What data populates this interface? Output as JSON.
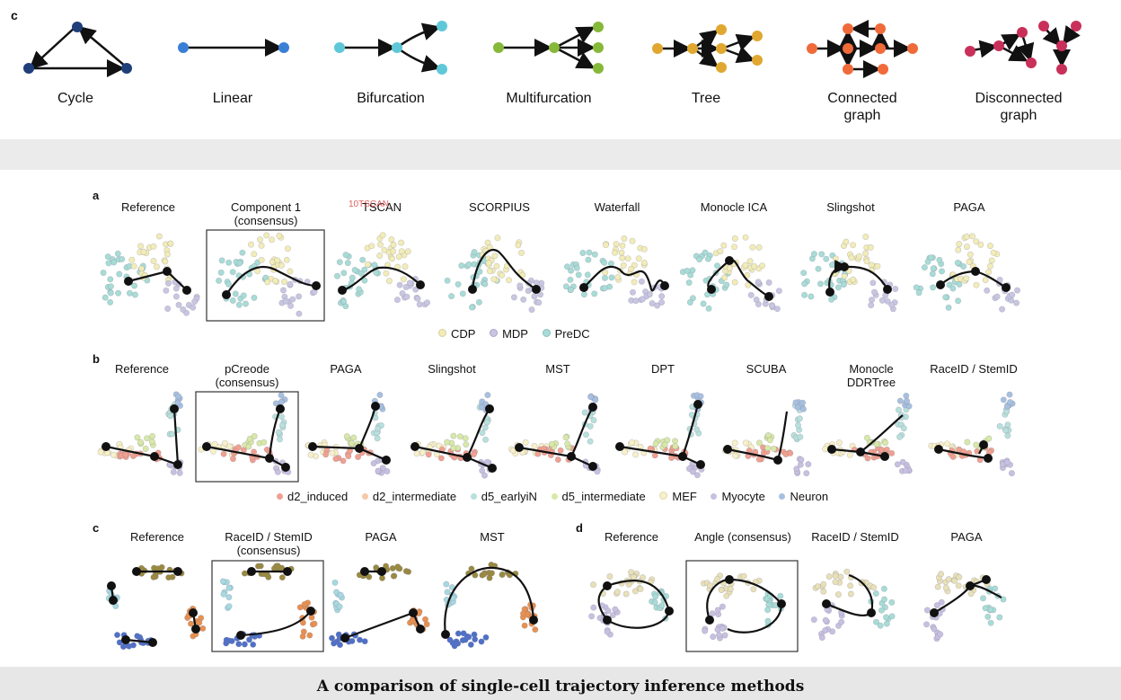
{
  "top_panel": {
    "label": "c",
    "topologies": [
      "Cycle",
      "Linear",
      "Bifurcation",
      "Multifurcation",
      "Tree",
      "Connected graph",
      "Disconnected graph"
    ]
  },
  "panel_a": {
    "label": "a",
    "methods": [
      "Reference",
      "Component 1 (consensus)",
      "TSCAN",
      "SCORPIUS",
      "Waterfall",
      "Monocle ICA",
      "Slingshot",
      "PAGA"
    ],
    "legend": [
      "CDP",
      "MDP",
      "PreDC"
    ]
  },
  "panel_b": {
    "label": "b",
    "methods": [
      "Reference",
      "pCreode (consensus)",
      "PAGA",
      "Slingshot",
      "MST",
      "DPT",
      "SCUBA",
      "Monocle DDRTree",
      "RaceID / StemID"
    ],
    "legend": [
      "d2_induced",
      "d2_intermediate",
      "d5_earlyiN",
      "d5_intermediate",
      "MEF",
      "Myocyte",
      "Neuron"
    ]
  },
  "panel_c": {
    "label": "c",
    "methods": [
      "Reference",
      "RaceID / StemID (consensus)",
      "PAGA",
      "MST"
    ]
  },
  "panel_d": {
    "label": "d",
    "methods": [
      "Reference",
      "Angle (consensus)",
      "RaceID / StemID",
      "PAGA"
    ]
  },
  "watermark": "10TSCAN",
  "caption": "A comparison of single-cell trajectory inference methods",
  "colors": {
    "cycle": "#1f3f7a",
    "linear": "#3a7fd6",
    "bifurcation": "#5ec8d8",
    "multifurcation": "#86b83a",
    "tree": "#e0a830",
    "connected": "#f06a3a",
    "disconnected": "#c8305a",
    "cdp": "#f2ecb8",
    "mdp": "#c9c6e2",
    "predc": "#a8dcd6",
    "d2_induced": "#f0a090",
    "d2_intermediate": "#f5c8a8",
    "d5_earlyiN": "#b8e0dc",
    "d5_intermediate": "#d8e8a8",
    "mef": "#f8f0c8",
    "myocyte": "#c8c0e0",
    "neuron": "#a8c0e0"
  }
}
